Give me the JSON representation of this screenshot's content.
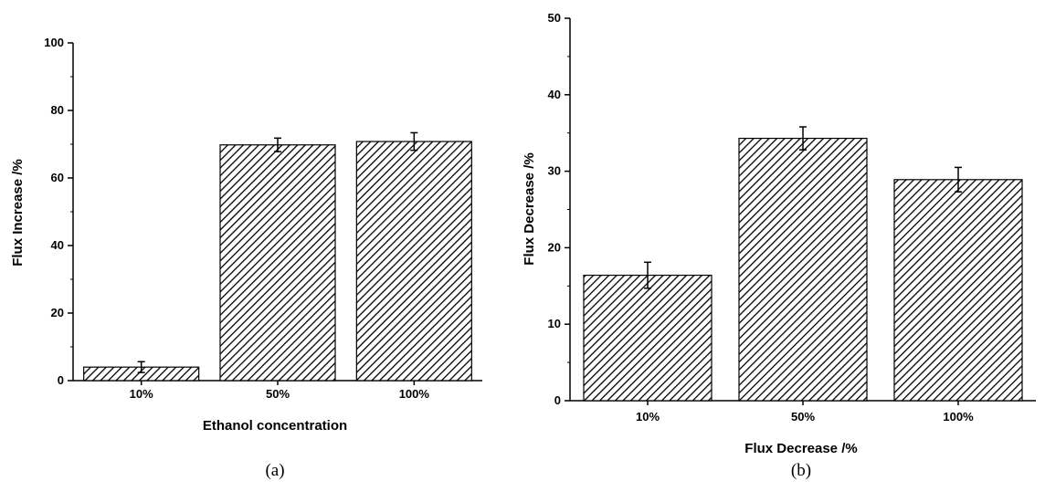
{
  "chart_data": [
    {
      "panel": "(a)",
      "type": "bar",
      "categories": [
        "10%",
        "50%",
        "100%"
      ],
      "values": [
        4,
        69.8,
        70.8
      ],
      "errors": [
        1.6,
        2.0,
        2.6
      ],
      "xlabel": "Ethanol concentration",
      "ylabel": "Flux Increase /%",
      "ylim": [
        0,
        100
      ],
      "yticks": [
        0,
        20,
        40,
        60,
        80,
        100
      ],
      "grid": false,
      "bar_pattern": "diagonal-hatch"
    },
    {
      "panel": "(b)",
      "type": "bar",
      "categories": [
        "10%",
        "50%",
        "100%"
      ],
      "values": [
        16.4,
        34.3,
        28.9
      ],
      "errors": [
        1.7,
        1.5,
        1.6
      ],
      "xlabel": "Flux Decrease /%",
      "ylabel": "Flux Decrease /%",
      "ylim": [
        0,
        50
      ],
      "yticks": [
        0,
        10,
        20,
        30,
        40,
        50
      ],
      "grid": false,
      "bar_pattern": "diagonal-hatch"
    }
  ]
}
